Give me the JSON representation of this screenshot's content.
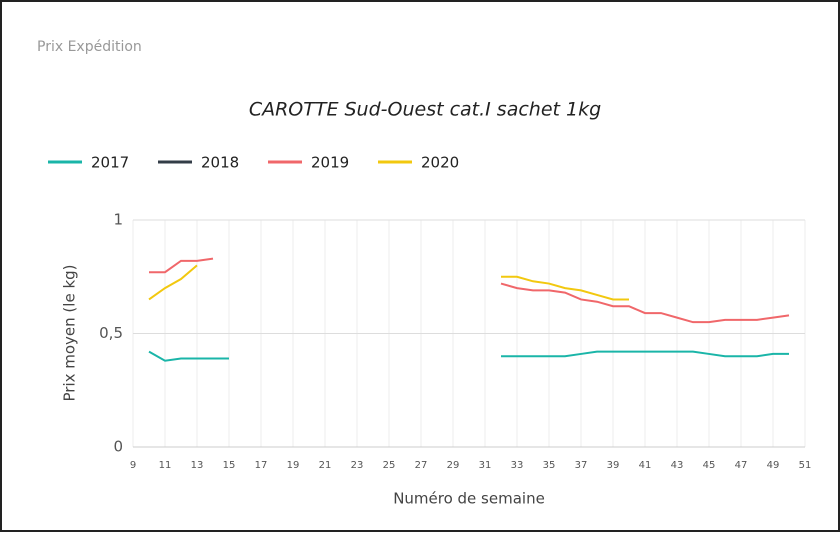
{
  "header": "Prix Expédition",
  "chart_data": {
    "type": "line",
    "title": "CAROTTE Sud-Ouest cat.I sachet 1kg",
    "x_label": "Numéro de semaine",
    "y_label": "Prix moyen  (le kg)",
    "x": [
      10,
      11,
      12,
      13,
      14,
      15,
      16,
      17,
      18,
      19,
      20,
      21,
      22,
      23,
      24,
      25,
      26,
      27,
      28,
      29,
      30,
      31,
      32,
      33,
      34,
      35,
      36,
      37,
      38,
      39,
      40,
      41,
      42,
      43,
      44,
      45,
      46,
      47,
      48,
      49,
      50
    ],
    "series": [
      {
        "name": "2017",
        "color": "#1ab5a8",
        "values": [
          0.42,
          0.38,
          0.39,
          0.39,
          0.39,
          0.39,
          null,
          null,
          null,
          null,
          null,
          null,
          null,
          null,
          null,
          null,
          null,
          null,
          null,
          null,
          null,
          null,
          0.4,
          0.4,
          0.4,
          0.4,
          0.4,
          0.41,
          0.42,
          0.42,
          0.42,
          0.42,
          0.42,
          0.42,
          0.42,
          0.41,
          0.4,
          0.4,
          0.4,
          0.41,
          0.41
        ]
      },
      {
        "name": "2018",
        "color": "#333d47",
        "values": [
          null,
          null,
          null,
          null,
          null,
          null,
          null,
          null,
          null,
          null,
          null,
          null,
          null,
          null,
          null,
          null,
          null,
          null,
          null,
          null,
          null,
          null,
          null,
          null,
          null,
          null,
          null,
          null,
          null,
          null,
          null,
          null,
          null,
          null,
          null,
          null,
          null,
          null,
          null,
          null,
          null
        ]
      },
      {
        "name": "2019",
        "color": "#f0676a",
        "values": [
          0.77,
          0.77,
          0.82,
          0.82,
          0.83,
          null,
          null,
          null,
          null,
          null,
          null,
          null,
          null,
          null,
          null,
          null,
          null,
          null,
          null,
          null,
          null,
          null,
          0.72,
          0.7,
          0.69,
          0.69,
          0.68,
          0.65,
          0.64,
          0.62,
          0.62,
          0.59,
          0.59,
          0.57,
          0.55,
          0.55,
          0.56,
          0.56,
          0.56,
          0.57,
          0.58
        ]
      },
      {
        "name": "2020",
        "color": "#f2c80f",
        "values": [
          0.65,
          0.7,
          0.74,
          0.8,
          null,
          null,
          null,
          null,
          null,
          null,
          null,
          null,
          null,
          null,
          null,
          null,
          null,
          null,
          null,
          null,
          null,
          null,
          0.75,
          0.75,
          0.73,
          0.72,
          0.7,
          0.69,
          0.67,
          0.65,
          0.65,
          null,
          null,
          null,
          null,
          null,
          null,
          null,
          null,
          null,
          null
        ]
      }
    ],
    "xlim": [
      9,
      51
    ],
    "xticks": [
      9,
      11,
      13,
      15,
      17,
      19,
      21,
      23,
      25,
      27,
      29,
      31,
      33,
      35,
      37,
      39,
      41,
      43,
      45,
      47,
      49,
      51
    ],
    "ylim": [
      0,
      1
    ],
    "yticks": [
      0,
      {
        "value": 0.5,
        "label": "0,5"
      },
      1
    ],
    "grid": true
  }
}
